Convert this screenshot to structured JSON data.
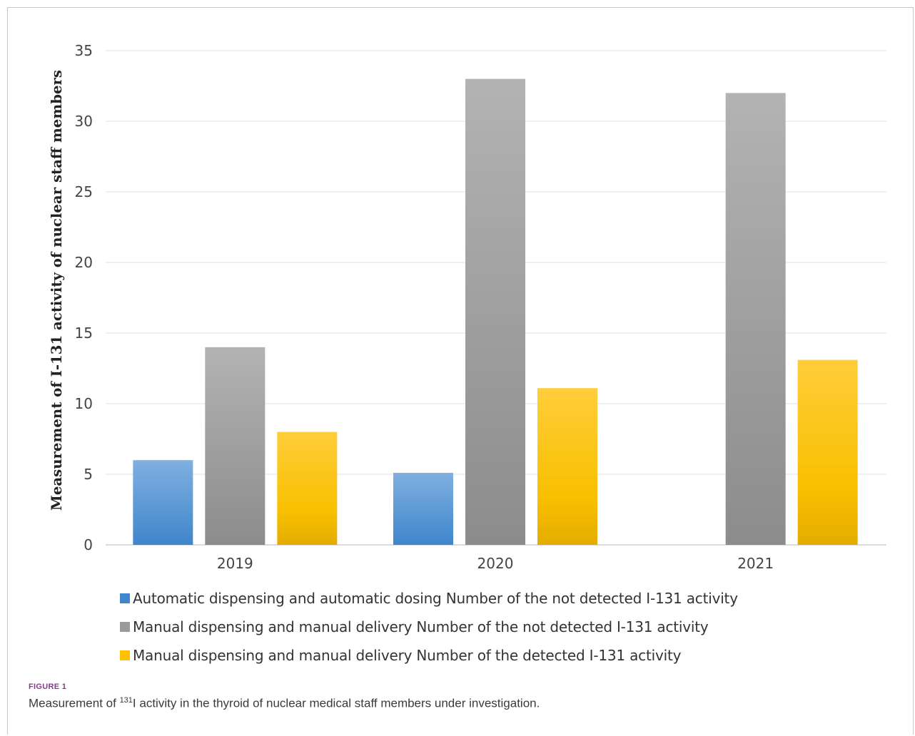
{
  "chart_data": {
    "type": "bar",
    "categories": [
      "2019",
      "2020",
      "2021"
    ],
    "series": [
      {
        "name": "Automatic dispensing and automatic dosing Number of the  not detected I-131 activity",
        "values": [
          6,
          5.1,
          0
        ],
        "color": "#5b9bd5"
      },
      {
        "name": "Manual dispensing and manual delivery Number of the  not detected I-131 activity",
        "values": [
          14,
          33,
          32
        ],
        "color": "#a5a5a5"
      },
      {
        "name": "Manual dispensing and manual delivery Number of the detected I-131 activity",
        "values": [
          8,
          11.1,
          13.1
        ],
        "color": "#ffc000"
      }
    ],
    "ylabel": "Measurement of I-131 activity of nuclear staff members",
    "xlabel": "",
    "ylim": [
      0,
      35
    ],
    "yticks": [
      "0",
      "5",
      "10",
      "15",
      "20",
      "25",
      "30",
      "35"
    ],
    "grid": true,
    "legend_position": "bottom"
  },
  "caption": {
    "label": "FIGURE 1",
    "prefix": "Measurement of ",
    "superscript": "131",
    "suffix": "I activity in the thyroid of nuclear medical staff members under investigation."
  }
}
